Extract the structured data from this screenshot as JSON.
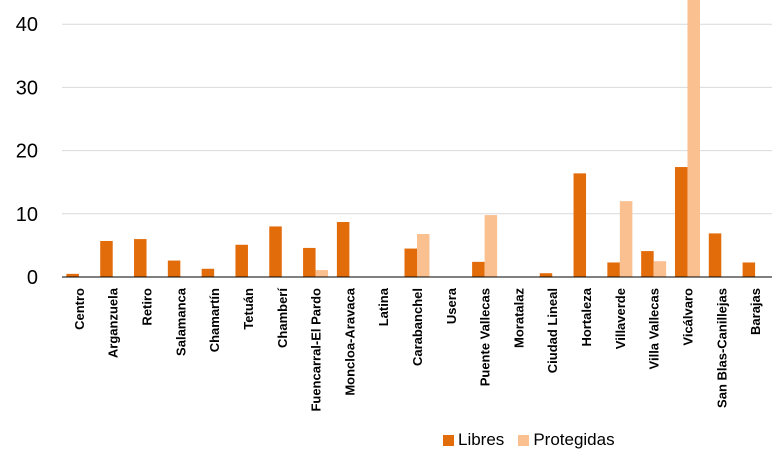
{
  "chart_data": {
    "type": "bar",
    "categories": [
      "Centro",
      "Arganzuela",
      "Retiro",
      "Salamanca",
      "Chamartín",
      "Tetuán",
      "Chamberí",
      "Fuencarral-El Pardo",
      "Moncloa-Aravaca",
      "Latina",
      "Carabanchel",
      "Usera",
      "Puente Vallecas",
      "Moratalaz",
      "Ciudad Lineal",
      "Hortaleza",
      "Villaverde",
      "Villa Vallecas",
      "Vicálvaro",
      "San Blas-Canillejas",
      "Barajas"
    ],
    "series": [
      {
        "name": "Libres",
        "color": "#e36c0a",
        "values": [
          0.5,
          5.7,
          6.0,
          2.6,
          1.3,
          5.1,
          8.0,
          4.6,
          8.7,
          0,
          4.5,
          0,
          2.4,
          0,
          0.6,
          16.4,
          2.3,
          4.1,
          17.4,
          6.9,
          2.3
        ]
      },
      {
        "name": "Protegidas",
        "color": "#fac090",
        "values": [
          0,
          0,
          0,
          0,
          0,
          0,
          0,
          1.1,
          0,
          0,
          6.8,
          0,
          9.8,
          0,
          0,
          0,
          12.0,
          2.5,
          44.5,
          0,
          0
        ]
      }
    ],
    "yticks": [
      0,
      10,
      20,
      30,
      40
    ],
    "ylim": [
      0,
      44.5
    ],
    "grid": true,
    "legend_position": "bottom-right"
  }
}
